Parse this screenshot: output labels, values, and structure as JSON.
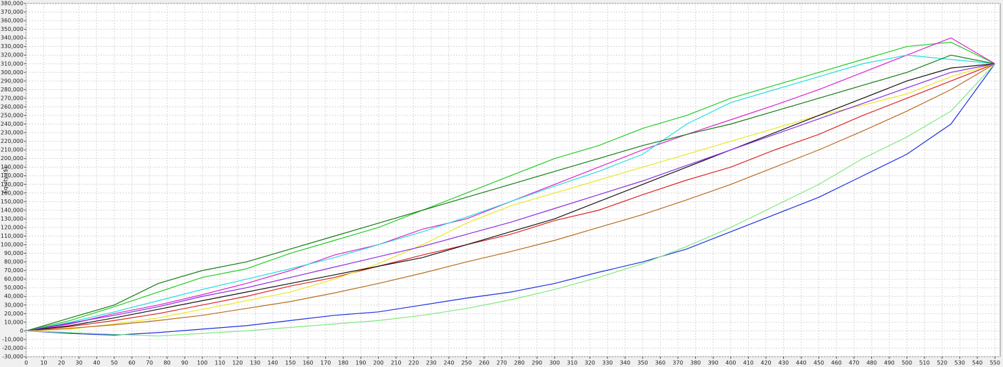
{
  "chart_data": {
    "type": "line",
    "y_label": "Equity ($)",
    "x": [
      0,
      25,
      50,
      75,
      100,
      125,
      150,
      175,
      200,
      225,
      250,
      275,
      300,
      325,
      350,
      375,
      400,
      425,
      450,
      475,
      500,
      525,
      550
    ],
    "series": [
      {
        "color": "#22cc22",
        "values": [
          0,
          12000,
          28000,
          45000,
          62000,
          72000,
          90000,
          105000,
          120000,
          140000,
          160000,
          180000,
          200000,
          215000,
          235000,
          250000,
          270000,
          285000,
          300000,
          315000,
          330000,
          335000,
          310000
        ]
      },
      {
        "color": "#dd22cc",
        "values": [
          0,
          8000,
          20000,
          30000,
          42000,
          55000,
          70000,
          88000,
          100000,
          118000,
          130000,
          150000,
          170000,
          190000,
          210000,
          228000,
          245000,
          262000,
          280000,
          300000,
          320000,
          340000,
          310000
        ]
      },
      {
        "color": "#1a2ee0",
        "values": [
          0,
          -3000,
          -5000,
          -2000,
          2000,
          6000,
          12000,
          18000,
          22000,
          30000,
          38000,
          45000,
          55000,
          68000,
          80000,
          95000,
          115000,
          135000,
          155000,
          180000,
          205000,
          240000,
          310000
        ]
      },
      {
        "color": "#dd2222",
        "values": [
          0,
          5000,
          12000,
          20000,
          30000,
          40000,
          52000,
          62000,
          75000,
          88000,
          100000,
          112000,
          128000,
          140000,
          158000,
          175000,
          190000,
          210000,
          228000,
          250000,
          270000,
          290000,
          310000
        ]
      },
      {
        "color": "#22dddd",
        "values": [
          0,
          10000,
          22000,
          35000,
          48000,
          60000,
          72000,
          85000,
          100000,
          115000,
          132000,
          150000,
          168000,
          185000,
          205000,
          240000,
          265000,
          280000,
          295000,
          310000,
          320000,
          315000,
          310000
        ]
      },
      {
        "color": "#e8e822",
        "values": [
          0,
          2000,
          8000,
          15000,
          25000,
          35000,
          45000,
          60000,
          78000,
          100000,
          125000,
          145000,
          160000,
          175000,
          190000,
          205000,
          220000,
          235000,
          250000,
          262000,
          275000,
          295000,
          310000
        ]
      },
      {
        "color": "#111111",
        "values": [
          0,
          6000,
          15000,
          25000,
          35000,
          45000,
          55000,
          65000,
          75000,
          85000,
          100000,
          115000,
          130000,
          150000,
          170000,
          190000,
          210000,
          230000,
          250000,
          270000,
          290000,
          305000,
          310000
        ]
      },
      {
        "color": "#137a13",
        "values": [
          0,
          15000,
          30000,
          55000,
          70000,
          80000,
          95000,
          110000,
          125000,
          140000,
          155000,
          170000,
          185000,
          200000,
          215000,
          228000,
          240000,
          255000,
          270000,
          285000,
          300000,
          320000,
          310000
        ]
      },
      {
        "color": "#b86a1a",
        "values": [
          0,
          3000,
          7000,
          12000,
          18000,
          26000,
          34000,
          44000,
          55000,
          67000,
          80000,
          92000,
          105000,
          120000,
          135000,
          152000,
          170000,
          190000,
          210000,
          232000,
          255000,
          280000,
          310000
        ]
      },
      {
        "color": "#8a2be2",
        "values": [
          0,
          9000,
          18000,
          28000,
          40000,
          50000,
          62000,
          74000,
          86000,
          98000,
          112000,
          126000,
          142000,
          158000,
          174000,
          192000,
          210000,
          228000,
          246000,
          264000,
          282000,
          300000,
          310000
        ]
      },
      {
        "color": "#7ee87e",
        "values": [
          0,
          -2000,
          -4000,
          -6000,
          -3000,
          0,
          4000,
          8000,
          12000,
          18000,
          26000,
          36000,
          48000,
          62000,
          78000,
          98000,
          120000,
          145000,
          170000,
          200000,
          225000,
          255000,
          310000
        ]
      }
    ],
    "xlim": [
      0,
      553
    ],
    "ylim": [
      -30000,
      380000
    ],
    "xticks": [
      0,
      10,
      20,
      30,
      40,
      50,
      60,
      70,
      80,
      90,
      100,
      110,
      120,
      130,
      140,
      150,
      160,
      170,
      180,
      190,
      200,
      210,
      220,
      230,
      240,
      250,
      260,
      270,
      280,
      290,
      300,
      310,
      320,
      330,
      340,
      350,
      360,
      370,
      380,
      390,
      400,
      410,
      420,
      430,
      440,
      450,
      460,
      470,
      480,
      490,
      500,
      510,
      520,
      530,
      540,
      550
    ],
    "yticks": [
      {
        "value": -30000,
        "label": "-30,000"
      },
      {
        "value": -20000,
        "label": "-20,000"
      },
      {
        "value": -10000,
        "label": "-10,000"
      },
      0,
      {
        "value": 10000,
        "label": "10,000"
      },
      {
        "value": 20000,
        "label": "20,000"
      },
      {
        "value": 30000,
        "label": "30,000"
      },
      {
        "value": 40000,
        "label": "40,000"
      },
      {
        "value": 50000,
        "label": "50,000"
      },
      {
        "value": 60000,
        "label": "60,000"
      },
      {
        "value": 70000,
        "label": "70,000"
      },
      {
        "value": 80000,
        "label": "80,000"
      },
      {
        "value": 90000,
        "label": "90,000"
      },
      {
        "value": 100000,
        "label": "100,000"
      },
      {
        "value": 110000,
        "label": "110,000"
      },
      {
        "value": 120000,
        "label": "120,000"
      },
      {
        "value": 130000,
        "label": "130,000"
      },
      {
        "value": 140000,
        "label": "140,000"
      },
      {
        "value": 150000,
        "label": "150,000"
      },
      {
        "value": 160000,
        "label": "160,000"
      },
      {
        "value": 170000,
        "label": "170,000"
      },
      {
        "value": 180000,
        "label": "180,000"
      },
      {
        "value": 190000,
        "label": "190,000"
      },
      {
        "value": 200000,
        "label": "200,000"
      },
      {
        "value": 210000,
        "label": "210,000"
      },
      {
        "value": 220000,
        "label": "220,000"
      },
      {
        "value": 230000,
        "label": "230,000"
      },
      {
        "value": 240000,
        "label": "240,000"
      },
      {
        "value": 250000,
        "label": "250,000"
      },
      {
        "value": 260000,
        "label": "260,000"
      },
      {
        "value": 270000,
        "label": "270,000"
      },
      {
        "value": 280000,
        "label": "280,000"
      },
      {
        "value": 290000,
        "label": "290,000"
      },
      {
        "value": 300000,
        "label": "300,000"
      },
      {
        "value": 310000,
        "label": "310,000"
      },
      {
        "value": 320000,
        "label": "320,000"
      },
      {
        "value": 330000,
        "label": "330,000"
      },
      {
        "value": 340000,
        "label": "340,000"
      },
      {
        "value": 350000,
        "label": "350,000"
      },
      {
        "value": 360000,
        "label": "360,000"
      },
      {
        "value": 370000,
        "label": "370,000"
      },
      {
        "value": 380000,
        "label": "380,000"
      }
    ],
    "grid": true
  }
}
